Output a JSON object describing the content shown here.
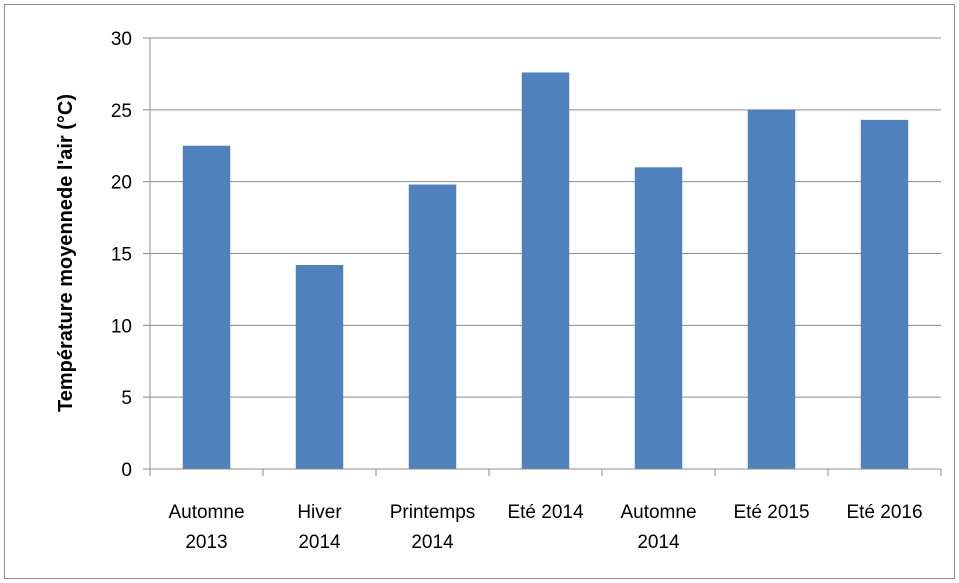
{
  "chart_data": {
    "type": "bar",
    "categories": [
      [
        "Automne",
        "2013"
      ],
      [
        "Hiver",
        "2014"
      ],
      [
        "Printemps",
        "2014"
      ],
      [
        "Eté 2014"
      ],
      [
        "Automne",
        "2014"
      ],
      [
        "Eté 2015"
      ],
      [
        "Eté 2016"
      ]
    ],
    "values": [
      22.5,
      14.2,
      19.8,
      27.6,
      21.0,
      25.0,
      24.3
    ],
    "ylabel": "Température moyennede l'air  (°C)",
    "ylim": [
      0,
      30
    ],
    "yticks": [
      "0",
      "5",
      "10",
      "15",
      "20",
      "25",
      "30"
    ],
    "grid": true,
    "bar_color": "#4F81BD"
  }
}
